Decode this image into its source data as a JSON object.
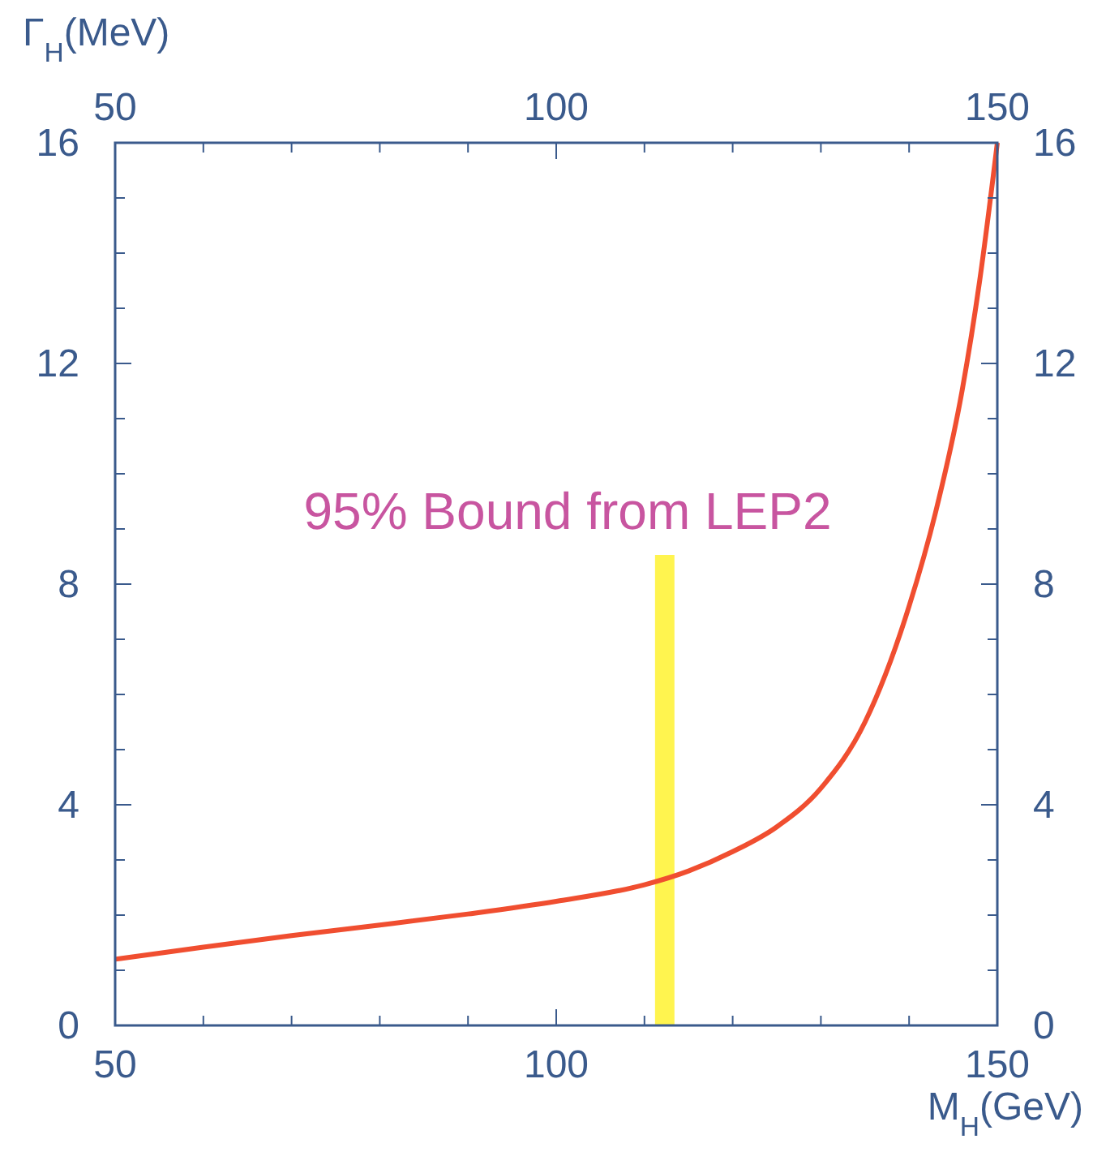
{
  "chart_data": {
    "type": "line",
    "xlabel": "M$_{H}$(GeV)",
    "ylabel": "Γ$_{H}$(MeV)",
    "x": [
      50,
      60,
      70,
      80,
      90,
      100,
      110,
      115,
      120,
      125,
      130,
      135,
      140,
      143,
      146,
      148,
      150
    ],
    "series": [
      {
        "color": "#f04e30",
        "values": [
          1.2,
          1.42,
          1.63,
          1.82,
          2.02,
          2.25,
          2.55,
          2.8,
          3.15,
          3.6,
          4.3,
          5.5,
          7.6,
          9.3,
          11.5,
          13.5,
          16
        ]
      }
    ],
    "xlim": [
      50,
      150
    ],
    "xticks": [
      50,
      {
        "value": 60,
        "label": null
      },
      {
        "value": 70,
        "label": null
      },
      {
        "value": 80,
        "label": null
      },
      {
        "value": 90,
        "label": null
      },
      100,
      {
        "value": 110,
        "label": null
      },
      {
        "value": 120,
        "label": null
      },
      {
        "value": 130,
        "label": null
      },
      {
        "value": 140,
        "label": null
      },
      150
    ],
    "x2lim": [
      50,
      150
    ],
    "x2ticks": [
      50,
      {
        "value": 60,
        "label": null
      },
      {
        "value": 70,
        "label": null
      },
      {
        "value": 80,
        "label": null
      },
      {
        "value": 90,
        "label": null
      },
      100,
      {
        "value": 110,
        "label": null
      },
      {
        "value": 120,
        "label": null
      },
      {
        "value": 130,
        "label": null
      },
      {
        "value": 140,
        "label": null
      },
      150
    ],
    "ylim": [
      0,
      16
    ],
    "yticks": [
      0,
      {
        "value": 1,
        "label": null
      },
      {
        "value": 2,
        "label": null
      },
      {
        "value": 3,
        "label": null
      },
      4,
      {
        "value": 5,
        "label": null
      },
      {
        "value": 6,
        "label": null
      },
      {
        "value": 7,
        "label": null
      },
      8,
      {
        "value": 9,
        "label": null
      },
      {
        "value": 10,
        "label": null
      },
      {
        "value": 11,
        "label": null
      },
      12,
      {
        "value": 13,
        "label": null
      },
      {
        "value": 14,
        "label": null
      },
      {
        "value": 15,
        "label": null
      },
      16
    ],
    "y2lim": [
      0,
      16
    ],
    "y2ticks": [
      0,
      {
        "value": 1,
        "label": null
      },
      {
        "value": 2,
        "label": null
      },
      {
        "value": 3,
        "label": null
      },
      4,
      {
        "value": 5,
        "label": null
      },
      {
        "value": 6,
        "label": null
      },
      {
        "value": 7,
        "label": null
      },
      8,
      {
        "value": 9,
        "label": null
      },
      {
        "value": 10,
        "label": null
      },
      {
        "value": 11,
        "label": null
      },
      12,
      {
        "value": 13,
        "label": null
      },
      {
        "value": 14,
        "label": null
      },
      {
        "value": 15,
        "label": null
      },
      16
    ],
    "bands": [
      {
        "axis": "x",
        "from": 111.2,
        "to": 113.4,
        "label": "95% Bound from LEP2",
        "color": "#fff44f"
      }
    ],
    "marker": "none",
    "line_style": "solid"
  }
}
